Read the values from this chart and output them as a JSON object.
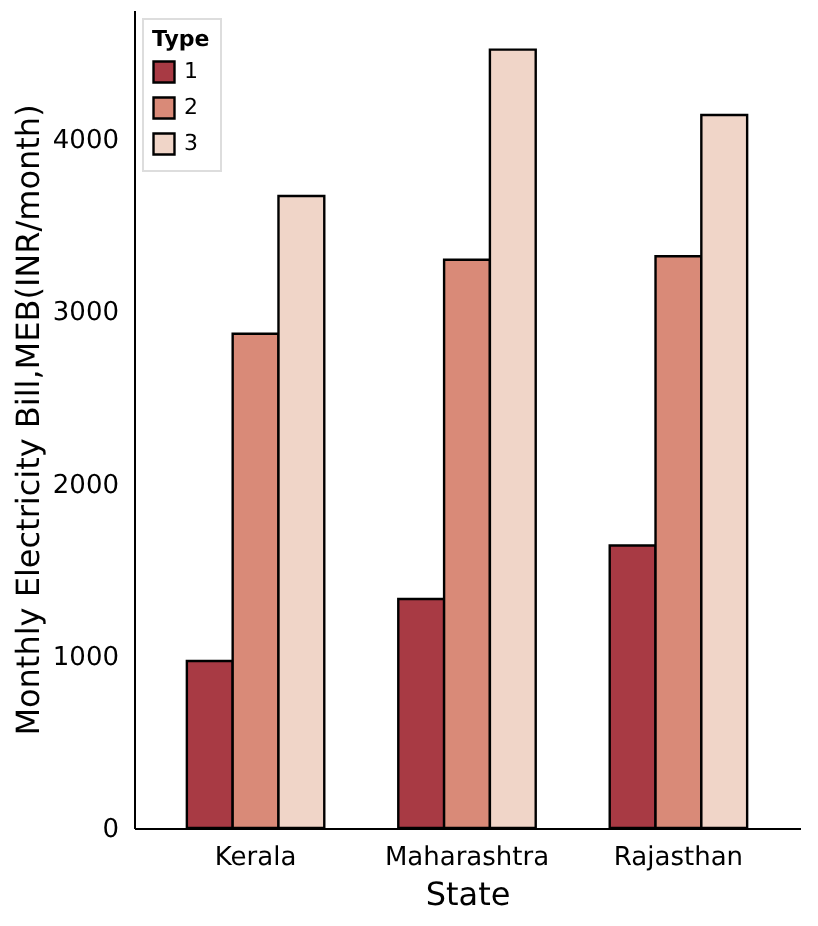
{
  "chart_data": {
    "type": "bar",
    "xlabel": "State",
    "ylabel": "Monthly Electricity Bill,MEB(INR/month)",
    "legend_title": "Type",
    "legend": "top left",
    "categories": [
      "Kerala",
      "Maharashtra",
      "Rajasthan"
    ],
    "series": [
      {
        "name": "1",
        "color": "#a83a44",
        "values": [
          970,
          1330,
          1640
        ]
      },
      {
        "name": "2",
        "color": "#d98a78",
        "values": [
          2870,
          3300,
          3320
        ]
      },
      {
        "name": "3",
        "color": "#f0d5c8",
        "values": [
          3670,
          4520,
          4140
        ]
      }
    ],
    "ylim": [
      0,
      4750
    ],
    "yticks": [
      0,
      1000,
      2000,
      3000,
      4000
    ],
    "grid": false
  }
}
